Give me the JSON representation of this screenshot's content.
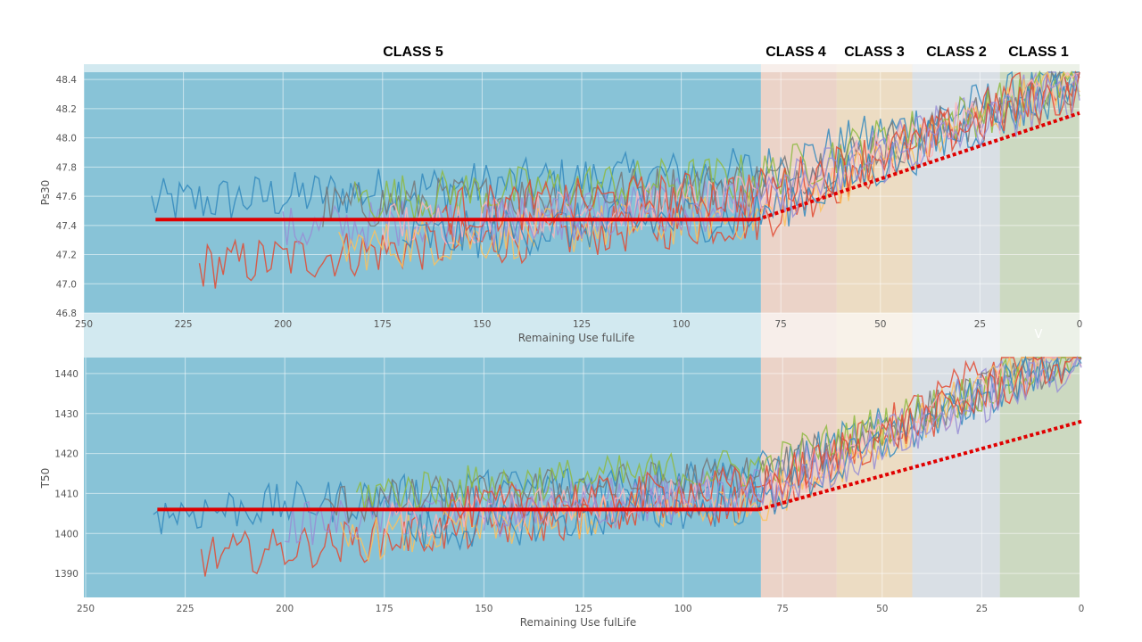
{
  "class_labels": [
    "CLASS 5",
    "CLASS 4",
    "CLASS 3",
    "CLASS 2",
    "CLASS 1"
  ],
  "class_regions": [
    {
      "label": "CLASS 5",
      "from": 250,
      "to": 80,
      "color": "#7fbfd4"
    },
    {
      "label": "CLASS 4",
      "from": 80,
      "to": 61,
      "color": "#e9cfc4"
    },
    {
      "label": "CLASS 3",
      "from": 61,
      "to": 42,
      "color": "#ead9bf"
    },
    {
      "label": "CLASS 2",
      "from": 42,
      "to": 20,
      "color": "#d6dde3"
    },
    {
      "label": "CLASS 1",
      "from": 20,
      "to": 0,
      "color": "#c9d6bd"
    }
  ],
  "stray_mark": "V",
  "series_colors": [
    "#348abd",
    "#e24a33",
    "#988ed5",
    "#777777",
    "#fbc15e",
    "#8eba42",
    "#ffb5b8"
  ],
  "chart_data": [
    {
      "type": "line",
      "ylabel": "Ps30",
      "xlabel": "Remaining Use fulLife",
      "xlim": [
        250,
        0
      ],
      "xticks": [
        250,
        225,
        200,
        175,
        150,
        125,
        100,
        75,
        50,
        25,
        0
      ],
      "ylim": [
        46.8,
        48.45
      ],
      "yticks": [
        46.8,
        47.0,
        47.2,
        47.4,
        47.6,
        47.8,
        48.0,
        48.2,
        48.4
      ],
      "tick_decimals": 1,
      "grid": true,
      "noise_amplitude": 0.17,
      "series": [
        {
          "start": 233,
          "base": 47.55,
          "slope": 0.006
        },
        {
          "start": 221,
          "base": 47.12,
          "slope": 0.0095
        },
        {
          "start": 200,
          "base": 47.36,
          "slope": 0.0078
        },
        {
          "start": 190,
          "base": 47.52,
          "slope": 0.0062
        },
        {
          "start": 186,
          "base": 47.24,
          "slope": 0.0088
        },
        {
          "start": 182,
          "base": 47.58,
          "slope": 0.006
        },
        {
          "start": 175,
          "base": 47.4,
          "slope": 0.0075
        },
        {
          "start": 170,
          "base": 47.3,
          "slope": 0.0082
        },
        {
          "start": 160,
          "base": 47.5,
          "slope": 0.0065
        },
        {
          "start": 150,
          "base": 47.42,
          "slope": 0.0072
        }
      ],
      "trend": {
        "flat_from": 232,
        "flat_to": 81,
        "flat_value": 47.44,
        "end_x": 0,
        "end_value": 48.17
      }
    },
    {
      "type": "line",
      "ylabel": "T50",
      "xlabel": "Remaining Use fulLife",
      "xlim": [
        250,
        0
      ],
      "xticks": [
        250,
        225,
        200,
        175,
        150,
        125,
        100,
        75,
        50,
        25,
        0
      ],
      "ylim": [
        1384,
        1444
      ],
      "yticks": [
        1390,
        1400,
        1410,
        1420,
        1430,
        1440
      ],
      "tick_decimals": 0,
      "grid": true,
      "noise_amplitude": 5.5,
      "series": [
        {
          "start": 233,
          "base": 1405,
          "slope": 0.27
        },
        {
          "start": 221,
          "base": 1394,
          "slope": 0.42
        },
        {
          "start": 200,
          "base": 1402,
          "slope": 0.33
        },
        {
          "start": 190,
          "base": 1407,
          "slope": 0.28
        },
        {
          "start": 186,
          "base": 1398,
          "slope": 0.38
        },
        {
          "start": 182,
          "base": 1410,
          "slope": 0.26
        },
        {
          "start": 175,
          "base": 1403,
          "slope": 0.32
        },
        {
          "start": 170,
          "base": 1400,
          "slope": 0.35
        },
        {
          "start": 160,
          "base": 1406,
          "slope": 0.3
        },
        {
          "start": 150,
          "base": 1404,
          "slope": 0.31
        }
      ],
      "trend": {
        "flat_from": 232,
        "flat_to": 81,
        "flat_value": 1406,
        "end_x": 0,
        "end_value": 1428
      }
    }
  ]
}
